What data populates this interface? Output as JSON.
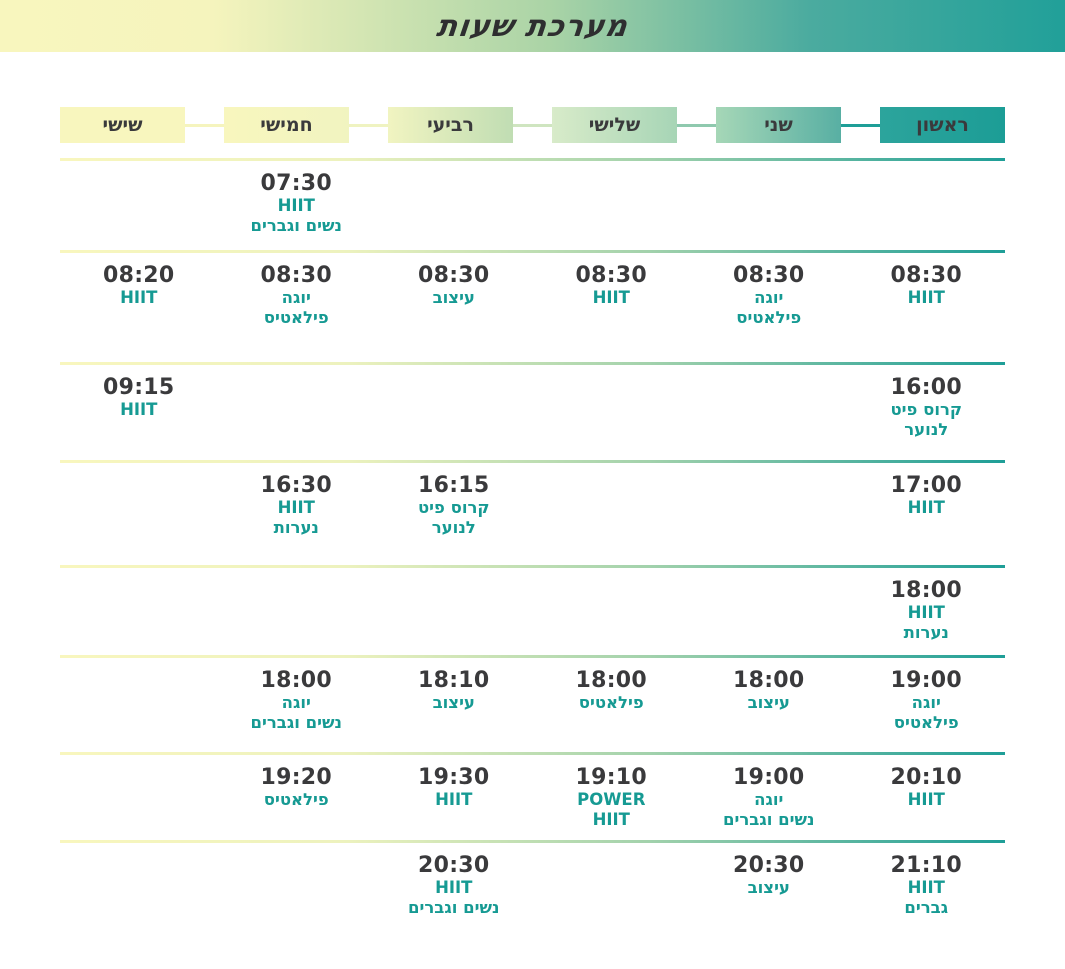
{
  "page_title": "מערכת שעות",
  "days": [
    {
      "id": "sunday",
      "label": "ראשון"
    },
    {
      "id": "monday",
      "label": "שני"
    },
    {
      "id": "tuesday",
      "label": "שלישי"
    },
    {
      "id": "wednesday",
      "label": "רביעי"
    },
    {
      "id": "thursday",
      "label": "חמישי"
    },
    {
      "id": "friday",
      "label": "שישי"
    }
  ],
  "schedule_rows": [
    {
      "cells": [
        null,
        null,
        null,
        null,
        {
          "time": "07:30",
          "lines": [
            "HIIT",
            "נשים וגברים"
          ]
        },
        null
      ]
    },
    {
      "cells": [
        {
          "time": "08:30",
          "lines": [
            "HIIT"
          ]
        },
        {
          "time": "08:30",
          "lines": [
            "יוגה",
            "פילאטיס"
          ]
        },
        {
          "time": "08:30",
          "lines": [
            "HIIT"
          ]
        },
        {
          "time": "08:30",
          "lines": [
            "עיצוב"
          ]
        },
        {
          "time": "08:30",
          "lines": [
            "יוגה",
            "פילאטיס"
          ]
        },
        {
          "time": "08:20",
          "lines": [
            "HIIT"
          ]
        }
      ]
    },
    {
      "cells": [
        {
          "time": "16:00",
          "lines": [
            "קרוס פיט",
            "לנוער"
          ]
        },
        null,
        null,
        null,
        null,
        {
          "time": "09:15",
          "lines": [
            "HIIT"
          ]
        }
      ]
    },
    {
      "cells": [
        {
          "time": "17:00",
          "lines": [
            "HIIT"
          ]
        },
        null,
        null,
        {
          "time": "16:15",
          "lines": [
            "קרוס פיט",
            "לנוער"
          ]
        },
        {
          "time": "16:30",
          "lines": [
            "HIIT",
            "נערות"
          ]
        },
        null
      ]
    },
    {
      "cells": [
        {
          "time": "18:00",
          "lines": [
            "HIIT",
            "נערות"
          ]
        },
        null,
        null,
        null,
        null,
        null
      ]
    },
    {
      "cells": [
        {
          "time": "19:00",
          "lines": [
            "יוגה",
            "פילאטיס"
          ]
        },
        {
          "time": "18:00",
          "lines": [
            "עיצוב"
          ]
        },
        {
          "time": "18:00",
          "lines": [
            "פילאטיס"
          ]
        },
        {
          "time": "18:10",
          "lines": [
            "עיצוב"
          ]
        },
        {
          "time": "18:00",
          "lines": [
            "יוגה",
            "נשים וגברים"
          ]
        },
        null
      ]
    },
    {
      "cells": [
        {
          "time": "20:10",
          "lines": [
            "HIIT"
          ]
        },
        {
          "time": "19:00",
          "lines": [
            "יוגה",
            "נשים וגברים"
          ]
        },
        {
          "time": "19:10",
          "lines": [
            "POWER",
            "HIIT"
          ]
        },
        {
          "time": "19:30",
          "lines": [
            "HIIT"
          ]
        },
        {
          "time": "19:20",
          "lines": [
            "פילאטיס"
          ]
        },
        null
      ]
    },
    {
      "cells": [
        {
          "time": "21:10",
          "lines": [
            "HIIT",
            "גברים"
          ]
        },
        {
          "time": "20:30",
          "lines": [
            "עיצוב"
          ]
        },
        null,
        {
          "time": "20:30",
          "lines": [
            "HIIT",
            "נשים וגברים"
          ]
        },
        null,
        null
      ]
    }
  ],
  "colors": {
    "teal_accent": "#1e9e97",
    "class_text": "#169a93",
    "time_text": "#3a3a3c",
    "banner_gradient_left": "#f8f6be",
    "banner_gradient_right": "#21a099",
    "day_tab_colors": [
      "#1c9d96",
      "#58afa3",
      "#a7d5b6",
      "#c0ddb3",
      "#f1f4c0",
      "#f8f6be"
    ]
  }
}
